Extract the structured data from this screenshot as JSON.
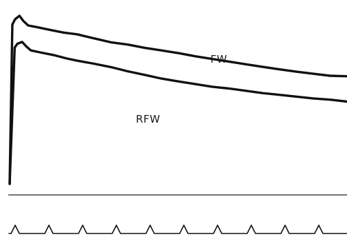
{
  "chart_data": {
    "type": "line",
    "title": "",
    "xlabel": "",
    "ylabel": "",
    "xlim": [
      0,
      100
    ],
    "ylim": [
      0,
      100
    ],
    "grid": false,
    "legend": "none",
    "time_marker": {
      "count": 10,
      "period": 10
    },
    "series": [
      {
        "name": "FW",
        "color": "#111111",
        "points": [
          [
            0,
            0
          ],
          [
            0.8,
            90
          ],
          [
            1.6,
            93
          ],
          [
            2.9,
            95
          ],
          [
            4.1,
            92
          ],
          [
            5.5,
            89.5
          ],
          [
            8,
            88.6
          ],
          [
            12,
            87
          ],
          [
            16,
            85.5
          ],
          [
            20,
            84.5
          ],
          [
            25,
            82.2
          ],
          [
            30,
            80
          ],
          [
            35,
            78.7
          ],
          [
            40,
            76.9
          ],
          [
            45,
            75.4
          ],
          [
            50,
            73.9
          ],
          [
            55,
            72.1
          ],
          [
            60,
            70.6
          ],
          [
            65,
            69.1
          ],
          [
            70,
            67.6
          ],
          [
            75,
            66.1
          ],
          [
            80,
            64.7
          ],
          [
            85,
            63.4
          ],
          [
            90,
            62.2
          ],
          [
            95,
            61.1
          ],
          [
            100,
            60.8
          ]
        ]
      },
      {
        "name": "RFW",
        "color": "#111111",
        "points": [
          [
            0,
            0
          ],
          [
            1.5,
            77
          ],
          [
            2.3,
            79.2
          ],
          [
            3.7,
            80.2
          ],
          [
            5,
            77.5
          ],
          [
            6.3,
            75.4
          ],
          [
            9,
            74.3
          ],
          [
            13,
            72.8
          ],
          [
            17,
            70.8
          ],
          [
            20,
            69.6
          ],
          [
            25,
            67.9
          ],
          [
            30,
            66
          ],
          [
            35,
            63.6
          ],
          [
            40,
            61.6
          ],
          [
            45,
            59.5
          ],
          [
            50,
            57.9
          ],
          [
            55,
            56.4
          ],
          [
            60,
            54.9
          ],
          [
            65,
            53.9
          ],
          [
            70,
            52.6
          ],
          [
            75,
            51.3
          ],
          [
            80,
            50.3
          ],
          [
            85,
            49.3
          ],
          [
            90,
            48.3
          ],
          [
            95,
            47.6
          ],
          [
            100,
            46.5
          ]
        ]
      }
    ]
  }
}
